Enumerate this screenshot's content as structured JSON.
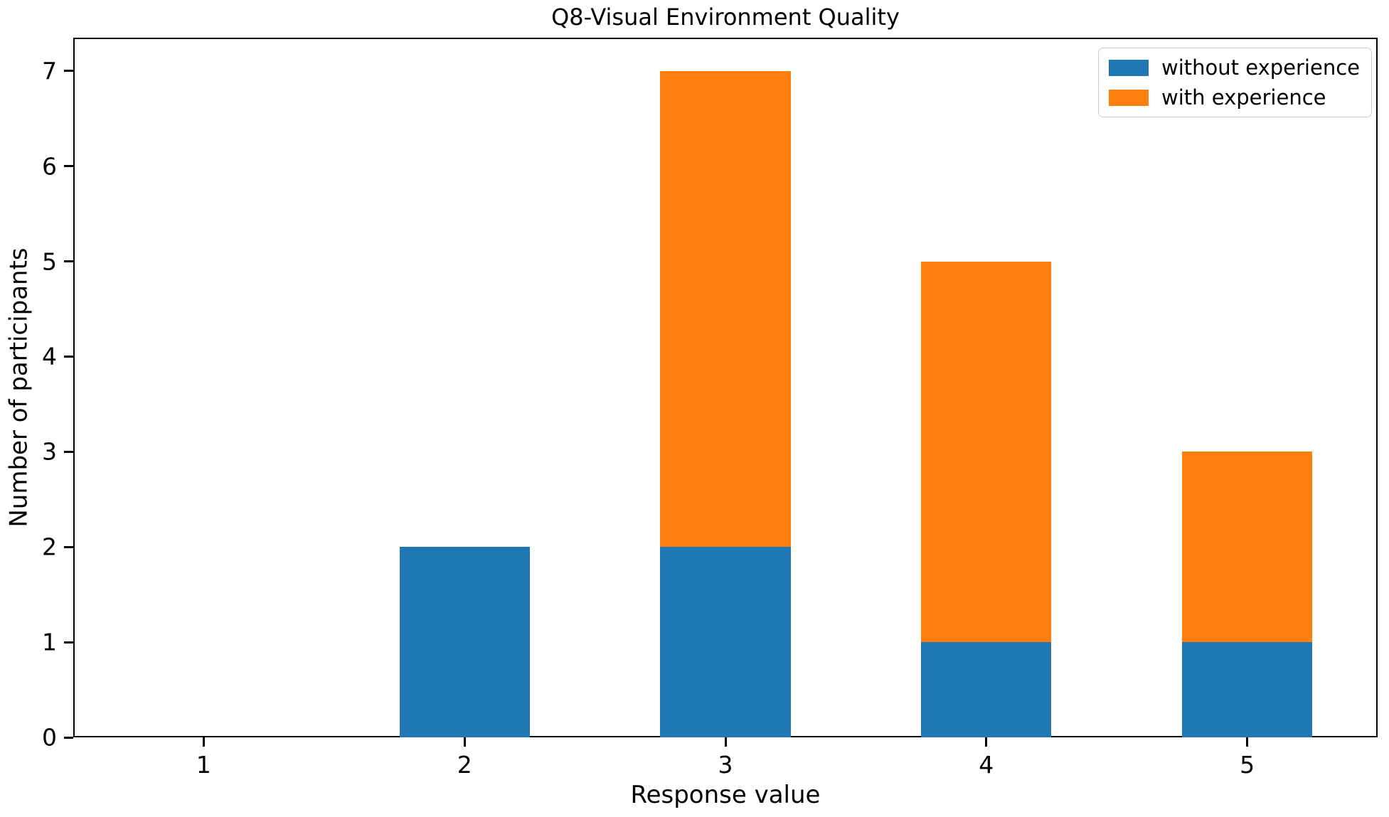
{
  "figure": {
    "background": "#ffffff",
    "text_color": "#000000"
  },
  "chart_data": {
    "type": "bar",
    "stacked": true,
    "title": "Q8-Visual Environment Quality",
    "xlabel": "Response value",
    "ylabel": "Number of participants",
    "categories": [
      1,
      2,
      3,
      4,
      5
    ],
    "series": [
      {
        "name": "without experience",
        "color": "#1f77b4",
        "values": [
          0,
          2,
          2,
          1,
          1
        ]
      },
      {
        "name": "with experience",
        "color": "#ff7f0e",
        "values": [
          0,
          0,
          5,
          4,
          2
        ]
      }
    ],
    "stack_totals": [
      0,
      2,
      7,
      5,
      3
    ],
    "bar_width": 0.5,
    "xlim": [
      0.5,
      5.5
    ],
    "ylim": [
      0,
      7.35
    ],
    "xticks": [
      1,
      2,
      3,
      4,
      5
    ],
    "yticks": [
      0,
      1,
      2,
      3,
      4,
      5,
      6,
      7
    ],
    "grid": false,
    "legend_position": "upper right",
    "legend_labels": [
      "without experience",
      "with experience"
    ]
  }
}
